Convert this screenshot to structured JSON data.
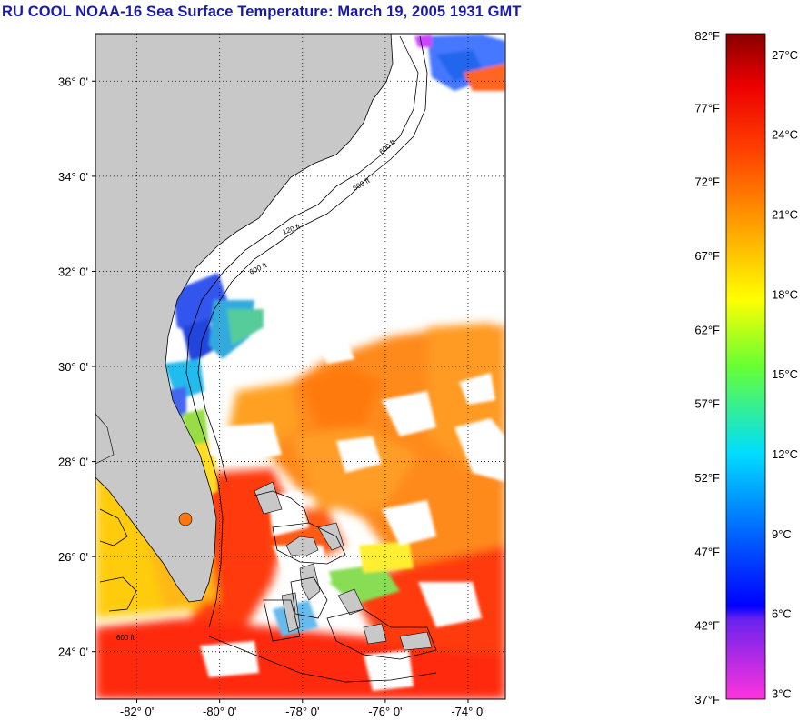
{
  "title": "RU COOL  NOAA-16  Sea Surface Temperature:  March 19, 2005 1931 GMT",
  "map": {
    "lon_range": [
      -83,
      -73.1
    ],
    "lat_range": [
      23,
      37
    ],
    "lat_ticks": [
      {
        "value": 24,
        "label": "24° 0'"
      },
      {
        "value": 26,
        "label": "26° 0'"
      },
      {
        "value": 28,
        "label": "28° 0'"
      },
      {
        "value": 30,
        "label": "30° 0'"
      },
      {
        "value": 32,
        "label": "32° 0'"
      },
      {
        "value": 34,
        "label": "34° 0'"
      },
      {
        "value": 36,
        "label": "36° 0'"
      }
    ],
    "lon_ticks": [
      {
        "value": -82,
        "label": "-82° 0'"
      },
      {
        "value": -80,
        "label": "-80° 0'"
      },
      {
        "value": -78,
        "label": "-78° 0'"
      },
      {
        "value": -76,
        "label": "-76° 0'"
      },
      {
        "value": -74,
        "label": "-74° 0'"
      }
    ],
    "contour_labels": [
      "120 ft",
      "600 ft",
      "600 ft",
      "600 ft",
      "600 ft"
    ],
    "land_color": "#c8c8c8",
    "nodata_color": "#ffffff"
  },
  "colorbar": {
    "fahrenheit_labels": [
      "82°F",
      "77°F",
      "72°F",
      "67°F",
      "62°F",
      "57°F",
      "52°F",
      "47°F",
      "42°F",
      "37°F"
    ],
    "celsius_labels": [
      "27°C",
      "24°C",
      "21°C",
      "18°C",
      "15°C",
      "12°C",
      "9°C",
      "6°C",
      "3°C"
    ],
    "f_range": [
      37,
      82
    ],
    "c_values": [
      27,
      24,
      21,
      18,
      15,
      12,
      9,
      6,
      3
    ]
  }
}
